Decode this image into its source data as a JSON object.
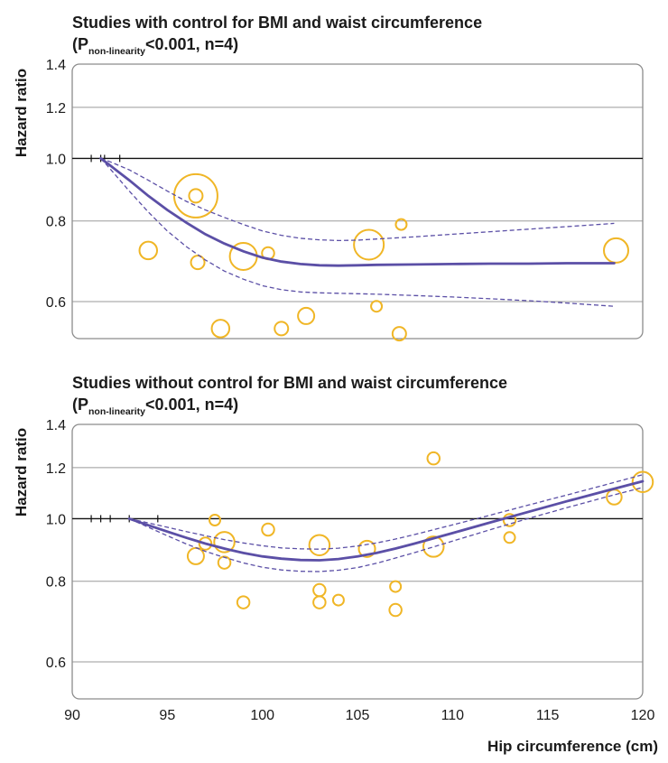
{
  "chart_data": [
    {
      "type": "line",
      "title": "Studies with control for BMI and waist circumference",
      "subtitle": {
        "prefix": "(P",
        "subscript": "non-linearity",
        "suffix": "<0.001, n=4)"
      },
      "ylabel": "Hazard ratio",
      "xlabel": "",
      "xlim": [
        90,
        120
      ],
      "ylim": [
        0.52,
        1.4
      ],
      "y_scale": "log",
      "yticks": [
        0.6,
        0.8,
        1.0,
        1.2,
        1.4
      ],
      "ytick_labels": [
        "0.6",
        "0.8",
        "1.0",
        "1.2",
        "1.4"
      ],
      "reference_line": 1.0,
      "colors": {
        "curve": "#5b4fa6",
        "ci": "#5b4fa6",
        "bubbles": "#f0b626"
      },
      "series": [
        {
          "kind": "curve",
          "x": [
            91.5,
            92,
            93,
            94,
            95,
            96,
            97,
            98,
            99,
            100,
            101,
            102,
            103,
            104,
            105,
            106,
            108,
            110,
            112,
            114,
            116,
            118.5
          ],
          "y": [
            1.0,
            0.975,
            0.925,
            0.875,
            0.832,
            0.795,
            0.763,
            0.738,
            0.718,
            0.702,
            0.692,
            0.686,
            0.683,
            0.682,
            0.683,
            0.684,
            0.685,
            0.686,
            0.687,
            0.687,
            0.688,
            0.688
          ]
        },
        {
          "kind": "ci_upper",
          "x": [
            91.5,
            92,
            93,
            94,
            95,
            96,
            97,
            98,
            99,
            100,
            101,
            102,
            103,
            104,
            105,
            106,
            108,
            110,
            112,
            114,
            116,
            118.5
          ],
          "y": [
            1.0,
            0.988,
            0.96,
            0.925,
            0.89,
            0.858,
            0.832,
            0.81,
            0.79,
            0.772,
            0.76,
            0.752,
            0.748,
            0.746,
            0.747,
            0.75,
            0.756,
            0.763,
            0.77,
            0.777,
            0.784,
            0.793
          ]
        },
        {
          "kind": "ci_lower",
          "x": [
            91.5,
            92,
            93,
            94,
            95,
            96,
            97,
            98,
            99,
            100,
            101,
            102,
            103,
            104,
            105,
            106,
            108,
            110,
            112,
            114,
            116,
            118.5
          ],
          "y": [
            1.0,
            0.963,
            0.89,
            0.826,
            0.772,
            0.73,
            0.696,
            0.669,
            0.65,
            0.635,
            0.626,
            0.621,
            0.619,
            0.618,
            0.617,
            0.616,
            0.613,
            0.61,
            0.606,
            0.602,
            0.597,
            0.59
          ]
        }
      ],
      "bubbles": [
        {
          "x": 96.5,
          "y": 0.875,
          "size": 28
        },
        {
          "x": 96.5,
          "y": 0.875,
          "size": 6
        },
        {
          "x": 94.0,
          "y": 0.72,
          "size": 9
        },
        {
          "x": 96.6,
          "y": 0.69,
          "size": 6
        },
        {
          "x": 99.0,
          "y": 0.705,
          "size": 16
        },
        {
          "x": 100.3,
          "y": 0.713,
          "size": 5
        },
        {
          "x": 105.6,
          "y": 0.735,
          "size": 18
        },
        {
          "x": 107.3,
          "y": 0.79,
          "size": 4
        },
        {
          "x": 118.6,
          "y": 0.72,
          "size": 14
        },
        {
          "x": 97.8,
          "y": 0.545,
          "size": 9
        },
        {
          "x": 101.0,
          "y": 0.545,
          "size": 6
        },
        {
          "x": 102.3,
          "y": 0.57,
          "size": 8
        },
        {
          "x": 106.0,
          "y": 0.59,
          "size": 4
        },
        {
          "x": 107.2,
          "y": 0.535,
          "size": 6
        }
      ],
      "rug": [
        91.0,
        91.5,
        91.7,
        92.5
      ]
    },
    {
      "type": "line",
      "title": "Studies without control for BMI and waist circumference",
      "subtitle": {
        "prefix": "(P",
        "subscript": "non-linearity",
        "suffix": "<0.001, n=4)"
      },
      "ylabel": "Hazard ratio",
      "xlabel": "Hip circumference (cm)",
      "xlim": [
        90,
        120
      ],
      "ylim": [
        0.52,
        1.4
      ],
      "y_scale": "log",
      "yticks": [
        0.6,
        0.8,
        1.0,
        1.2,
        1.4
      ],
      "ytick_labels": [
        "0.6",
        "0.8",
        "1.0",
        "1.2",
        "1.4"
      ],
      "xticks": [
        90,
        95,
        100,
        105,
        110,
        115,
        120
      ],
      "xtick_labels": [
        "90",
        "95",
        "100",
        "105",
        "110",
        "115",
        "120"
      ],
      "reference_line": 1.0,
      "colors": {
        "curve": "#5b4fa6",
        "ci": "#5b4fa6",
        "bubbles": "#f0b626"
      },
      "series": [
        {
          "kind": "curve",
          "x": [
            93,
            94,
            95,
            96,
            97,
            98,
            99,
            100,
            101,
            102,
            103,
            104,
            105,
            106,
            107,
            108,
            110,
            112,
            114,
            116,
            118,
            120
          ],
          "y": [
            1.0,
            0.977,
            0.955,
            0.934,
            0.915,
            0.899,
            0.885,
            0.874,
            0.867,
            0.863,
            0.862,
            0.866,
            0.874,
            0.885,
            0.899,
            0.915,
            0.95,
            0.987,
            1.025,
            1.064,
            1.103,
            1.143
          ]
        },
        {
          "kind": "ci_upper",
          "x": [
            93,
            94,
            95,
            96,
            97,
            98,
            99,
            100,
            101,
            102,
            103,
            104,
            105,
            106,
            107,
            108,
            110,
            112,
            114,
            116,
            118,
            120
          ],
          "y": [
            1.0,
            0.985,
            0.97,
            0.955,
            0.941,
            0.928,
            0.917,
            0.908,
            0.901,
            0.898,
            0.897,
            0.9,
            0.907,
            0.917,
            0.93,
            0.945,
            0.978,
            1.013,
            1.05,
            1.088,
            1.128,
            1.17
          ]
        },
        {
          "kind": "ci_lower",
          "x": [
            93,
            94,
            95,
            96,
            97,
            98,
            99,
            100,
            101,
            102,
            103,
            104,
            105,
            106,
            107,
            108,
            110,
            112,
            114,
            116,
            118,
            120
          ],
          "y": [
            1.0,
            0.97,
            0.941,
            0.914,
            0.89,
            0.871,
            0.854,
            0.841,
            0.833,
            0.829,
            0.828,
            0.832,
            0.84,
            0.853,
            0.869,
            0.886,
            0.923,
            0.962,
            1.001,
            1.04,
            1.079,
            1.118
          ]
        }
      ],
      "bubbles": [
        {
          "x": 97.5,
          "y": 0.995,
          "size": 4
        },
        {
          "x": 97.0,
          "y": 0.915,
          "size": 5
        },
        {
          "x": 98.0,
          "y": 0.92,
          "size": 11
        },
        {
          "x": 96.5,
          "y": 0.875,
          "size": 8
        },
        {
          "x": 98.0,
          "y": 0.855,
          "size": 5
        },
        {
          "x": 99.0,
          "y": 0.742,
          "size": 5
        },
        {
          "x": 100.3,
          "y": 0.962,
          "size": 5
        },
        {
          "x": 103.0,
          "y": 0.91,
          "size": 11
        },
        {
          "x": 103.0,
          "y": 0.775,
          "size": 5
        },
        {
          "x": 103.0,
          "y": 0.742,
          "size": 5
        },
        {
          "x": 104.0,
          "y": 0.748,
          "size": 4
        },
        {
          "x": 105.5,
          "y": 0.898,
          "size": 8
        },
        {
          "x": 107.0,
          "y": 0.785,
          "size": 4
        },
        {
          "x": 107.0,
          "y": 0.722,
          "size": 5
        },
        {
          "x": 109.0,
          "y": 1.24,
          "size": 5
        },
        {
          "x": 109.0,
          "y": 0.905,
          "size": 11
        },
        {
          "x": 113.0,
          "y": 0.995,
          "size": 5
        },
        {
          "x": 113.0,
          "y": 0.935,
          "size": 4
        },
        {
          "x": 118.5,
          "y": 1.08,
          "size": 7
        },
        {
          "x": 120.0,
          "y": 1.14,
          "size": 11
        }
      ],
      "rug": [
        91.0,
        91.5,
        92.0,
        93.0,
        94.5
      ]
    }
  ]
}
